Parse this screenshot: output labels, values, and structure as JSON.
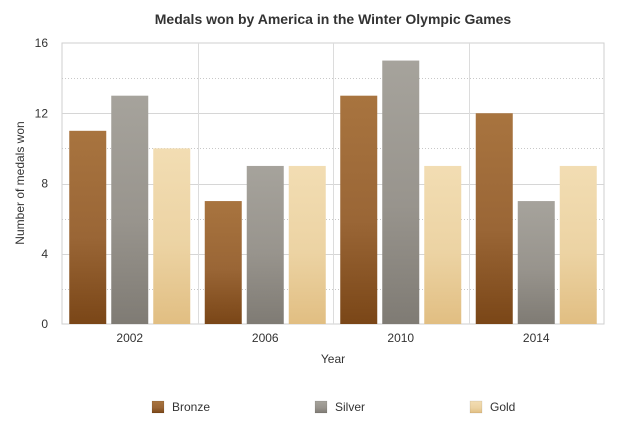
{
  "chart_data": {
    "type": "bar",
    "title": "Medals won by America in the Winter Olympic Games",
    "xlabel": "Year",
    "ylabel": "Number of medals won",
    "categories": [
      "2002",
      "2006",
      "2010",
      "2014"
    ],
    "series": [
      {
        "name": "Bronze",
        "values": [
          11,
          7,
          13,
          12
        ],
        "color": "#8c5a2b"
      },
      {
        "name": "Silver",
        "values": [
          13,
          9,
          15,
          7
        ],
        "color": "#8f8b84"
      },
      {
        "name": "Gold",
        "values": [
          10,
          9,
          9,
          9
        ],
        "color": "#e6c894"
      }
    ],
    "ylim": [
      0,
      16
    ],
    "yticks": [
      0,
      4,
      8,
      12,
      16
    ],
    "grid": true,
    "legend_position": "bottom"
  }
}
